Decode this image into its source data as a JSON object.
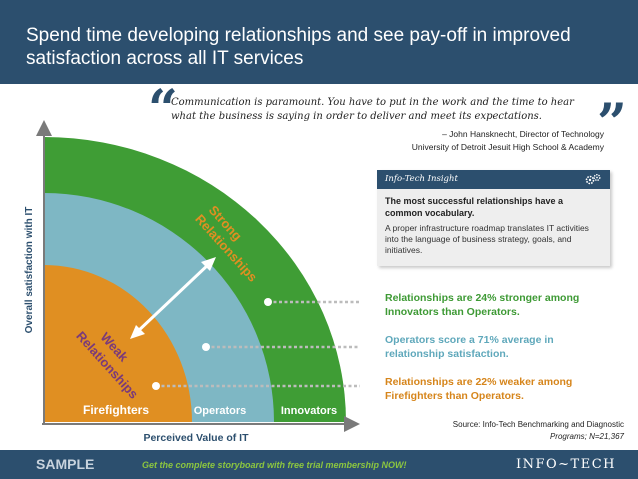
{
  "header": {
    "title": "Spend time developing relationships and see pay-off in improved satisfaction across all IT services"
  },
  "quote": {
    "open_mark": "“",
    "close_mark": "”",
    "text": "Communication is paramount. You have to put in the work and the time to hear what the business is saying in order to deliver and meet its expectations.",
    "author_line1": "– John Hansknecht, Director of Technology",
    "author_line2": "University of Detroit Jesuit High School & Academy"
  },
  "diagram": {
    "y_axis_label": "Overall satisfaction with IT",
    "x_axis_label": "Perceived Value of IT",
    "bands": [
      {
        "label": "Firefighters",
        "color": "#e08f22"
      },
      {
        "label": "Operators",
        "color": "#7eb7c4"
      },
      {
        "label": "Innovators",
        "color": "#3f9d35"
      }
    ],
    "arrow_label_strong": "Strong Relationships",
    "arrow_label_weak": "Weak Relationships",
    "strong_word1": "Strong",
    "strong_word2": "Relationships",
    "weak_word1": "Weak",
    "weak_word2": "Relationships",
    "colors": {
      "arrow": "#ffffff",
      "axis": "#7a7a7a",
      "leader": "#bcbcbc",
      "strong_text": "#e08f22",
      "weak_text": "#7a3a7a"
    }
  },
  "insight": {
    "header": "Info-Tech Insight",
    "icon": "gears-icon",
    "bold_text": "The most successful relationships have a common vocabulary.",
    "body_text": "A proper infrastructure roadmap translates IT activities into the language of business strategy, goals, and initiatives."
  },
  "callouts": [
    {
      "text": "Relationships are 24% stronger among Innovators than Operators.",
      "color": "#3e9a35"
    },
    {
      "text": "Operators score a 71% average in relationship satisfaction.",
      "color": "#5fa8bb"
    },
    {
      "text": "Relationships are 22% weaker among Firefighters than Operators.",
      "color": "#d6851b"
    }
  ],
  "source": {
    "line1": "Source: Info-Tech Benchmarking and Diagnostic",
    "line2": "Programs; N=21,367"
  },
  "footer": {
    "sample": "SAMPLE",
    "cta": "Get the complete storyboard with free trial membership NOW!",
    "logo": "INFO~TECH"
  }
}
